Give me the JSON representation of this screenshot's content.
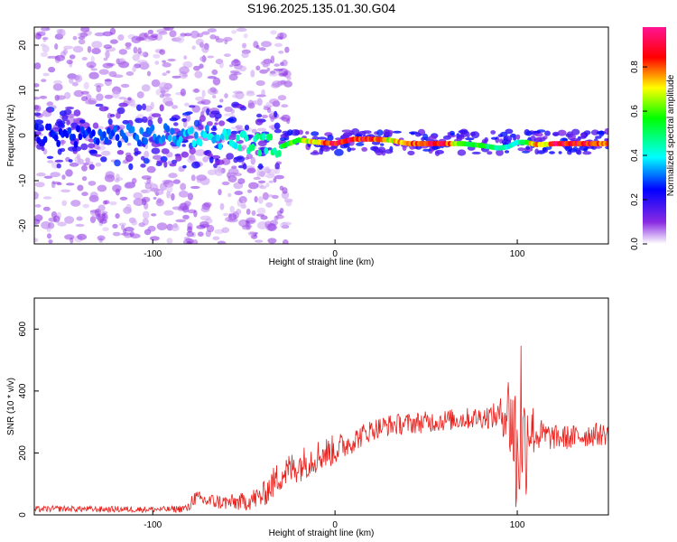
{
  "chart_data": [
    {
      "type": "heatmap",
      "title": "S196.2025.135.01.30.G04",
      "xlabel": "Height of straight line (km)",
      "ylabel": "Frequency (Hz)",
      "xlim": [
        -165,
        150
      ],
      "ylim": [
        -24,
        24
      ],
      "xticks": [
        -100,
        0,
        100
      ],
      "yticks": [
        -20,
        -10,
        0,
        10,
        20
      ],
      "colorbar": {
        "label": "Normalized spectral amplitude",
        "range": [
          0,
          0.98
        ],
        "ticks": [
          0.0,
          0.2,
          0.4,
          0.6,
          0.8
        ],
        "tick_labels": [
          "0.0",
          "0.2",
          "0.4",
          "0.6",
          "0.8"
        ],
        "colormap": [
          "#ffffff",
          "#8a2be2",
          "#0000ff",
          "#00ffff",
          "#00ff00",
          "#ffff00",
          "#ff0000",
          "#ff1493"
        ]
      },
      "ridge": {
        "x": [
          -165,
          -120,
          -90,
          -70,
          -55,
          -40,
          -30,
          -20,
          -10,
          0,
          10,
          20,
          30,
          40,
          50,
          60,
          70,
          80,
          90,
          95,
          100,
          105,
          110,
          115,
          120,
          130,
          140,
          150
        ],
        "frequency": [
          0,
          0,
          0,
          0,
          -1,
          -2,
          -2.5,
          -1,
          -1.5,
          -1.8,
          -0.8,
          -0.8,
          -1,
          -1.8,
          -1.8,
          -1.8,
          -1.8,
          -2.2,
          -2.8,
          -2.5,
          -1.5,
          -1.5,
          -2,
          -2,
          -1.8,
          -1.8,
          -1.8,
          -1.8
        ],
        "amplitude": [
          0.25,
          0.3,
          0.35,
          0.4,
          0.45,
          0.5,
          0.55,
          0.65,
          0.8,
          0.95,
          0.95,
          0.9,
          0.7,
          0.85,
          0.9,
          0.95,
          0.6,
          0.6,
          0.5,
          0.45,
          0.45,
          0.6,
          0.9,
          0.7,
          0.95,
          0.95,
          0.9,
          0.8
        ]
      },
      "grid": false
    },
    {
      "type": "line",
      "title": "",
      "xlabel": "Height of straight line (km)",
      "ylabel": "SNR (10 * v/v)",
      "xlim": [
        -165,
        150
      ],
      "ylim": [
        0,
        700
      ],
      "xticks": [
        -100,
        0,
        100
      ],
      "yticks": [
        0,
        200,
        400,
        600
      ],
      "series": [
        {
          "color": "#e8201c",
          "x": [
            -165,
            -150,
            -130,
            -110,
            -90,
            -80,
            -78,
            -70,
            -60,
            -50,
            -40,
            -35,
            -30,
            -20,
            -10,
            0,
            10,
            20,
            30,
            40,
            50,
            60,
            70,
            80,
            90,
            95,
            98,
            100,
            102,
            104,
            106,
            110,
            120,
            130,
            140,
            150
          ],
          "y": [
            18,
            20,
            18,
            18,
            18,
            22,
            55,
            45,
            40,
            42,
            60,
            95,
            130,
            160,
            190,
            210,
            240,
            275,
            290,
            295,
            300,
            305,
            310,
            315,
            320,
            340,
            280,
            150,
            350,
            200,
            300,
            260,
            250,
            250,
            260,
            260
          ],
          "spread": [
            10,
            10,
            10,
            10,
            10,
            15,
            25,
            25,
            25,
            30,
            40,
            50,
            55,
            55,
            55,
            50,
            40,
            35,
            35,
            35,
            35,
            35,
            35,
            35,
            45,
            120,
            220,
            260,
            300,
            220,
            150,
            60,
            40,
            40,
            40,
            35
          ]
        }
      ],
      "grid": false
    }
  ]
}
